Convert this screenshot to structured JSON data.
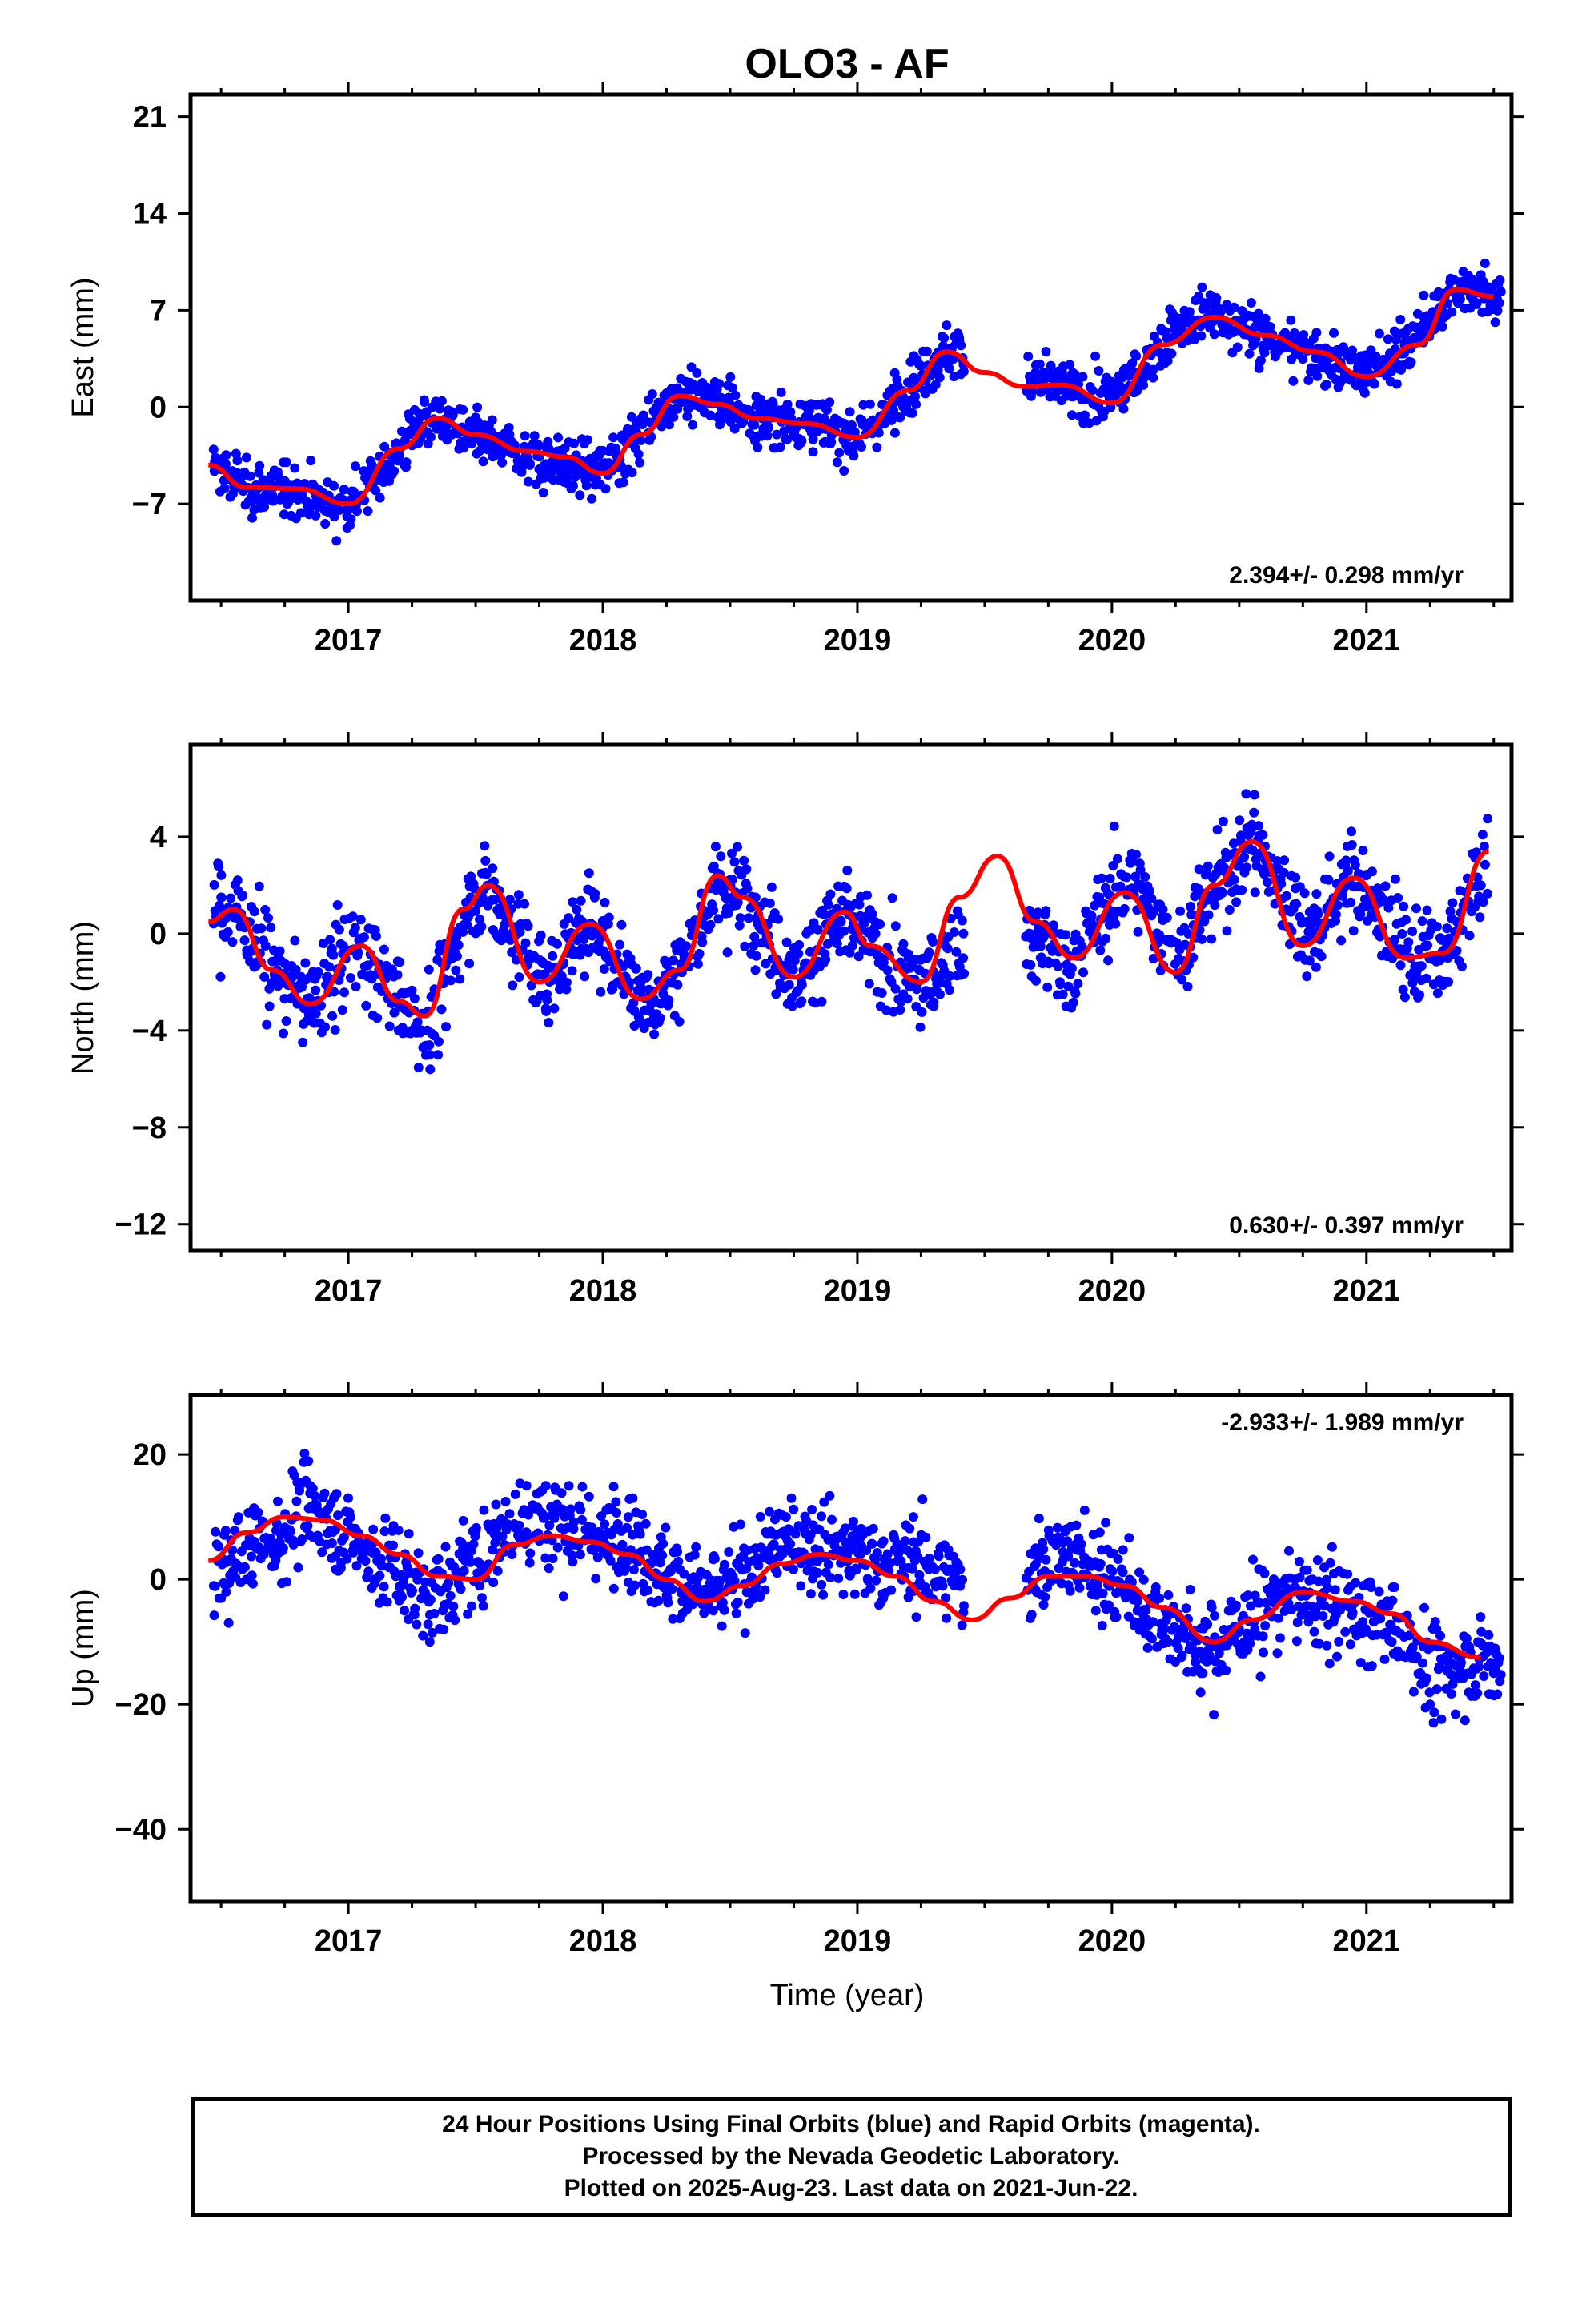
{
  "title": "OLO3 - AF",
  "xlabel": "Time (year)",
  "notes": [
    "24 Hour Positions Using Final Orbits (blue) and Rapid Orbits (magenta).",
    "Processed by the Nevada Geodetic Laboratory.",
    "Plotted on 2025-Aug-23. Last data on 2021-Jun-22."
  ],
  "colors": {
    "points": "#0000ff",
    "model": "#ff0000",
    "axes": "#000000"
  },
  "chart_data": [
    {
      "type": "scatter",
      "component": "East",
      "ylabel": "East (mm)",
      "rate": "2.394+/- 0.298 mm/yr",
      "rate_position": "bottom-right",
      "xlim": [
        2016.38,
        2021.57
      ],
      "ylim": [
        -14,
        22.6
      ],
      "x_ticks": [
        2017,
        2018,
        2019,
        2020,
        2021
      ],
      "y_ticks": [
        21,
        14,
        7,
        0,
        -7
      ],
      "model_curve": {
        "x": [
          2016.45,
          2016.6,
          2016.8,
          2017.0,
          2017.2,
          2017.35,
          2017.5,
          2017.7,
          2017.85,
          2018.0,
          2018.15,
          2018.3,
          2018.45,
          2018.6,
          2018.8,
          2019.0,
          2019.2,
          2019.35,
          2019.5,
          2019.65,
          2019.8,
          2020.0,
          2020.2,
          2020.4,
          2020.6,
          2020.8,
          2021.0,
          2021.2,
          2021.35,
          2021.5
        ],
        "y": [
          -4.2,
          -5.8,
          -5.9,
          -7.0,
          -3.0,
          -0.8,
          -2.0,
          -3.2,
          -3.6,
          -4.8,
          -2.0,
          0.8,
          0.2,
          -0.8,
          -1.2,
          -2.2,
          1.2,
          4.0,
          2.5,
          1.5,
          1.6,
          0.3,
          4.5,
          6.5,
          5.2,
          4.0,
          2.2,
          4.5,
          8.5,
          8.0
        ]
      },
      "series": [
        {
          "name": "",
          "x": [
            2016.5,
            2016.62,
            2016.75,
            2016.92,
            2017.05,
            2017.2,
            2017.28,
            2017.45,
            2017.6,
            2017.75,
            2017.86,
            2017.98,
            2018.12,
            2018.25,
            2018.38,
            2018.5,
            2018.65,
            2018.82,
            2018.95,
            2019.08,
            2019.22,
            2019.32,
            2019.4,
            2019.7,
            2019.85,
            2019.98,
            2020.12,
            2020.25,
            2020.38,
            2020.55,
            2020.72,
            2020.9,
            2021.0,
            2021.15,
            2021.28,
            2021.4,
            2021.5
          ],
          "y": [
            -4.5,
            -6.5,
            -6.0,
            -7.5,
            -6.5,
            -3.5,
            -0.5,
            -2.5,
            -3.5,
            -4.5,
            -5.5,
            -4.5,
            -2.5,
            1.0,
            1.5,
            -0.5,
            -1.5,
            -1.0,
            -2.5,
            -1.5,
            2.0,
            4.0,
            5.0,
            2.5,
            1.0,
            1.0,
            2.5,
            6.5,
            7.5,
            5.0,
            4.0,
            3.0,
            2.5,
            4.5,
            8.0,
            9.0,
            8.0
          ]
        }
      ]
    },
    {
      "type": "scatter",
      "component": "North",
      "ylabel": "North (mm)",
      "rate": "0.630+/- 0.397 mm/yr",
      "rate_position": "bottom-right",
      "xlim": [
        2016.38,
        2021.57
      ],
      "ylim": [
        -13.1,
        7.8
      ],
      "x_ticks": [
        2017,
        2018,
        2019,
        2020,
        2021
      ],
      "y_ticks": [
        4,
        0,
        -4,
        -8,
        -12
      ],
      "model_curve": {
        "x": [
          2016.45,
          2016.55,
          2016.7,
          2016.85,
          2017.05,
          2017.2,
          2017.3,
          2017.45,
          2017.55,
          2017.75,
          2017.95,
          2018.15,
          2018.3,
          2018.45,
          2018.55,
          2018.75,
          2018.95,
          2019.05,
          2019.25,
          2019.4,
          2019.55,
          2019.7,
          2019.85,
          2020.05,
          2020.25,
          2020.4,
          2020.55,
          2020.75,
          2020.95,
          2021.15,
          2021.3,
          2021.48
        ],
        "y": [
          0.5,
          1.0,
          -1.5,
          -2.9,
          -0.5,
          -2.8,
          -3.4,
          1.0,
          2.0,
          -2.0,
          0.4,
          -2.7,
          -1.5,
          2.4,
          1.5,
          -1.8,
          0.9,
          -0.5,
          -2.0,
          1.5,
          3.2,
          0.5,
          -1.0,
          1.7,
          -1.6,
          2.0,
          3.8,
          -0.5,
          2.3,
          -1.0,
          -0.8,
          3.4
        ]
      },
      "series": [
        {
          "name": "",
          "x": [
            2016.5,
            2016.6,
            2016.72,
            2016.85,
            2016.98,
            2017.12,
            2017.25,
            2017.32,
            2017.48,
            2017.62,
            2017.78,
            2017.92,
            2018.05,
            2018.2,
            2018.32,
            2018.48,
            2018.6,
            2018.78,
            2018.9,
            2019.05,
            2019.18,
            2019.3,
            2019.72,
            2019.82,
            2019.95,
            2020.08,
            2020.2,
            2020.3,
            2020.45,
            2020.55,
            2020.65,
            2020.8,
            2020.92,
            2021.05,
            2021.2,
            2021.32,
            2021.45
          ],
          "y": [
            1.5,
            0.5,
            -1.5,
            -3.0,
            -0.5,
            -1.5,
            -4.0,
            -5.0,
            1.5,
            1.0,
            -2.5,
            0.5,
            -1.0,
            -3.5,
            -1.0,
            2.0,
            1.5,
            -2.0,
            0.5,
            0.0,
            -2.5,
            -3.0,
            -1.0,
            -3.0,
            1.5,
            3.0,
            1.0,
            0.0,
            2.5,
            4.5,
            3.0,
            0.5,
            2.0,
            1.5,
            -1.5,
            -1.0,
            2.0
          ]
        }
      ]
    },
    {
      "type": "scatter",
      "component": "Up",
      "ylabel": "Up (mm)",
      "rate": "-2.933+/- 1.989 mm/yr",
      "rate_position": "top-right",
      "xlim": [
        2016.38,
        2021.57
      ],
      "ylim": [
        -51.5,
        29.5
      ],
      "x_ticks": [
        2017,
        2018,
        2019,
        2020,
        2021
      ],
      "y_ticks": [
        20,
        0,
        -20,
        -40
      ],
      "model_curve": {
        "x": [
          2016.45,
          2016.6,
          2016.75,
          2016.9,
          2017.05,
          2017.2,
          2017.35,
          2017.5,
          2017.65,
          2017.8,
          2017.95,
          2018.1,
          2018.25,
          2018.4,
          2018.55,
          2018.7,
          2018.85,
          2019.0,
          2019.15,
          2019.3,
          2019.45,
          2019.6,
          2019.75,
          2019.9,
          2020.05,
          2020.2,
          2020.4,
          2020.55,
          2020.75,
          2020.95,
          2021.1,
          2021.25,
          2021.45
        ],
        "y": [
          3.0,
          7.5,
          10.0,
          9.5,
          7.0,
          4.0,
          0.5,
          0.0,
          5.5,
          7.0,
          6.0,
          4.0,
          0.0,
          -3.5,
          -1.0,
          2.5,
          4.0,
          3.0,
          0.5,
          -3.5,
          -6.5,
          -3.0,
          0.5,
          0.5,
          -1.0,
          -4.5,
          -10.0,
          -6.5,
          -2.0,
          -3.5,
          -5.5,
          -10.0,
          -12.5
        ]
      },
      "series": [
        {
          "name": "",
          "x": [
            2016.5,
            2016.6,
            2016.72,
            2016.85,
            2016.95,
            2017.1,
            2017.22,
            2017.32,
            2017.45,
            2017.58,
            2017.7,
            2017.82,
            2017.95,
            2018.1,
            2018.22,
            2018.35,
            2018.48,
            2018.6,
            2018.72,
            2018.85,
            2018.98,
            2019.1,
            2019.22,
            2019.35,
            2019.7,
            2019.82,
            2019.95,
            2020.1,
            2020.22,
            2020.35,
            2020.5,
            2020.65,
            2020.8,
            2020.95,
            2021.1,
            2021.25,
            2021.4,
            2021.5
          ],
          "y": [
            -3.0,
            0.0,
            5.0,
            15.0,
            8.0,
            0.0,
            -5.0,
            -10.0,
            5.0,
            12.0,
            15.0,
            12.0,
            8.0,
            10.0,
            5.0,
            0.0,
            -2.0,
            5.0,
            10.0,
            8.0,
            5.0,
            2.0,
            10.0,
            5.0,
            5.0,
            8.0,
            2.0,
            -5.0,
            -10.0,
            -15.0,
            -8.0,
            -2.0,
            -5.0,
            -8.0,
            -10.0,
            -20.0,
            -15.0,
            -15.0
          ]
        }
      ]
    }
  ]
}
